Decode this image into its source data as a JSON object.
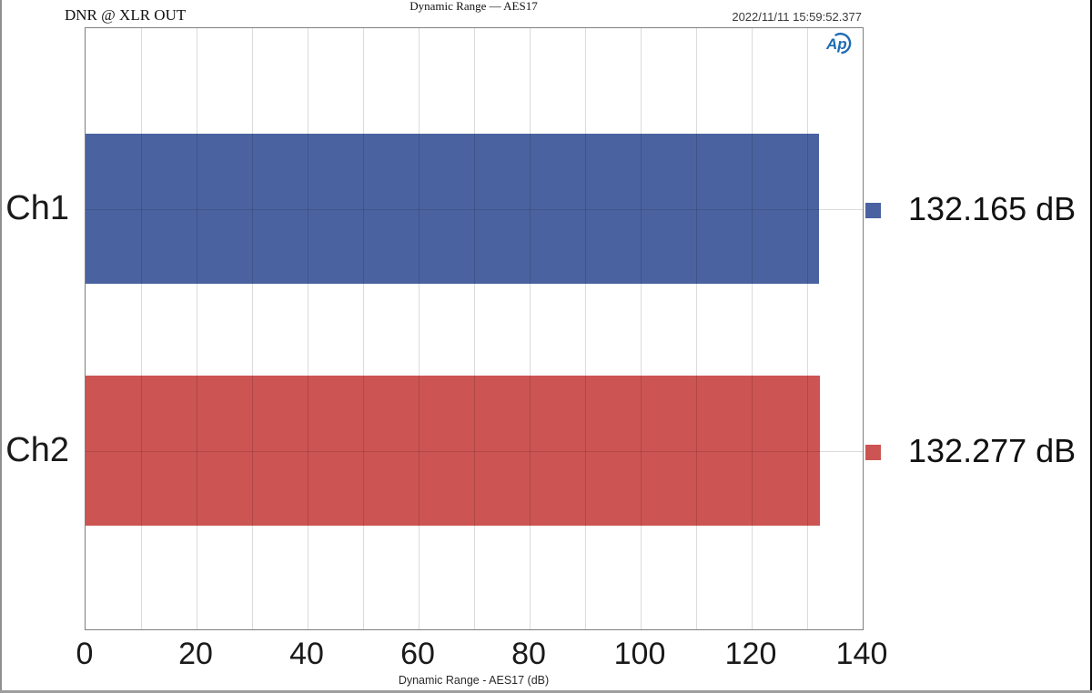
{
  "window": {
    "annotation": "DNR @ XLR OUT",
    "timestamp": "2022/11/11 15:59:52.377"
  },
  "logo": {
    "name": "audio-precision-logo",
    "label": "Ap",
    "color": "#1e6cb4"
  },
  "chart_data": {
    "type": "bar",
    "orientation": "horizontal",
    "title": "Dynamic Range — AES17",
    "xlabel": "Dynamic Range - AES17 (dB)",
    "ylabel": "",
    "categories": [
      "Ch1",
      "Ch2"
    ],
    "values": [
      132.165,
      132.277
    ],
    "value_labels": [
      "132.165 dB",
      "132.277 dB"
    ],
    "bar_colors": [
      "#4a63a0",
      "#cc5452"
    ],
    "xlim": [
      0,
      140
    ],
    "x_ticks": [
      0,
      20,
      40,
      60,
      80,
      100,
      120,
      140
    ],
    "x_minor_step": 10,
    "grid": "vertical every 10 dB, horizontal at category centers",
    "legend_position": "right of plot, one colored square marker per channel"
  },
  "colors": {
    "plot_border": "#7f7f7f",
    "gridline": "rgba(0,0,0,0.14)",
    "window_edge_left": "#8f8f8f",
    "window_edge_right": "#0a0a0a",
    "window_edge_bottom": "#9e9e9e"
  }
}
